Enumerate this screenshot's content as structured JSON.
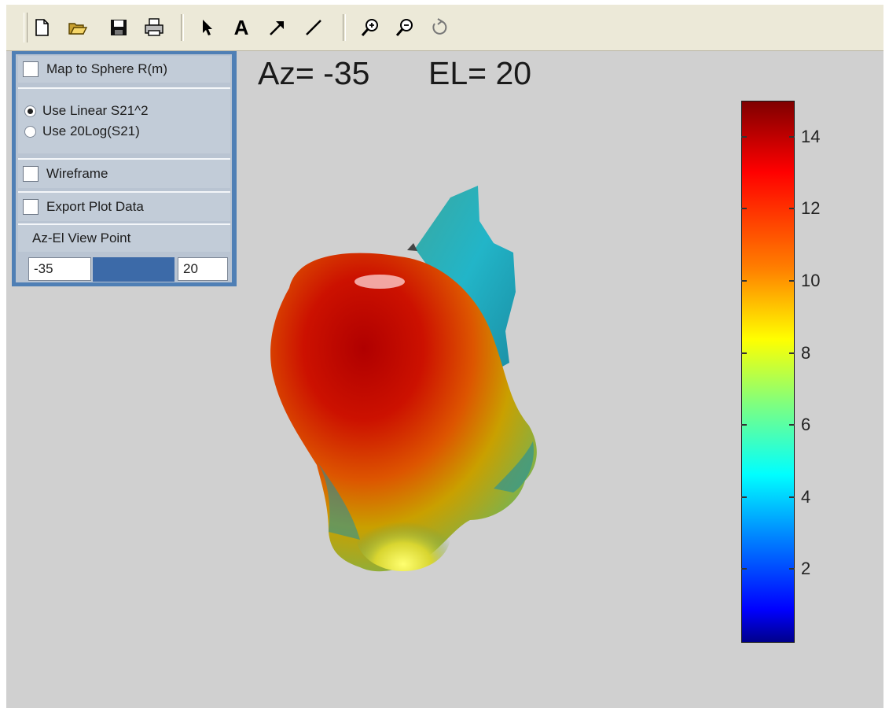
{
  "toolbar": {
    "buttons": [
      {
        "name": "new-file-icon"
      },
      {
        "name": "open-folder-icon"
      },
      {
        "name": "save-icon"
      },
      {
        "name": "print-icon"
      },
      {
        "name": "select-pointer-icon"
      },
      {
        "name": "insert-text-icon",
        "glyph": "A"
      },
      {
        "name": "insert-arrow-icon"
      },
      {
        "name": "insert-line-icon"
      },
      {
        "name": "zoom-in-icon"
      },
      {
        "name": "zoom-out-icon"
      },
      {
        "name": "rotate-3d-icon"
      }
    ]
  },
  "panel": {
    "map_to_sphere_label": "Map to Sphere R(m)",
    "map_to_sphere_checked": false,
    "radio_linear_label": "Use Linear S21^2",
    "radio_log_label": "Use 20Log(S21)",
    "selected_mode": "linear",
    "wireframe_label": "Wireframe",
    "wireframe_checked": false,
    "export_label": "Export Plot Data",
    "export_checked": false,
    "viewpoint_label": "Az-El View Point",
    "az_value": "-35",
    "el_value": "20"
  },
  "plot": {
    "az_text": "Az= -35",
    "el_text": "EL= 20",
    "colorbar_labels": [
      "14",
      "12",
      "10",
      "8",
      "6",
      "4",
      "2"
    ],
    "colormap": "jet",
    "colorbar_min": 0,
    "colorbar_max": 15
  }
}
